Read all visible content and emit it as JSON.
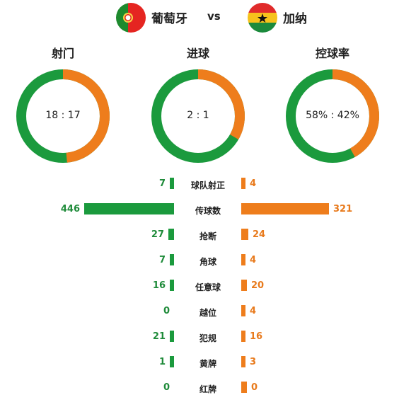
{
  "teams": {
    "home": {
      "name": "葡萄牙",
      "color": "#1b9a3d",
      "flag_icon": "portugal-flag-icon"
    },
    "away": {
      "name": "加纳",
      "color": "#ee7d1c",
      "flag_icon": "ghana-flag-icon"
    },
    "vs": "vs"
  },
  "rings": [
    {
      "title": "射门",
      "label": "18 : 17",
      "home": 18,
      "away": 17
    },
    {
      "title": "进球",
      "label": "2 : 1",
      "home": 2,
      "away": 1
    },
    {
      "title": "控球率",
      "label": "58% : 42%",
      "home": 58,
      "away": 42
    }
  ],
  "stats": [
    {
      "label": "球队射正",
      "home": 7,
      "away": 4
    },
    {
      "label": "传球数",
      "home": 446,
      "away": 321
    },
    {
      "label": "抢断",
      "home": 27,
      "away": 24
    },
    {
      "label": "角球",
      "home": 7,
      "away": 4
    },
    {
      "label": "任意球",
      "home": 16,
      "away": 20
    },
    {
      "label": "越位",
      "home": 0,
      "away": 4
    },
    {
      "label": "犯规",
      "home": 21,
      "away": 16
    },
    {
      "label": "黄牌",
      "home": 1,
      "away": 3
    },
    {
      "label": "红牌",
      "home": 0,
      "away": 0
    }
  ]
}
